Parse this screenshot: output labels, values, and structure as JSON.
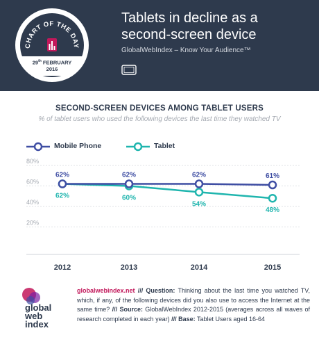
{
  "header": {
    "badge_top": "CHART OF THE DAY",
    "badge_date_day": "29",
    "badge_date_suffix": "th",
    "badge_date_month": "FEBRUARY",
    "badge_date_year": "2016",
    "title_line1": "Tablets in decline as a",
    "title_line2": "second-screen device",
    "subtitle": "GlobalWebIndex – Know Your Audience™",
    "icon": "tablet-icon"
  },
  "colors": {
    "header_bg": "#2e3a4d",
    "mobile": "#3f4ea3",
    "tablet": "#1fb5ae",
    "accent": "#c2185b"
  },
  "chart_data": {
    "type": "line",
    "title": "SECOND-SCREEN DEVICES AMONG TABLET USERS",
    "subtitle": "% of tablet users who used the following devices the last time they watched TV",
    "x": [
      "2012",
      "2013",
      "2014",
      "2015"
    ],
    "y_ticks": [
      "80%",
      "60%",
      "40%",
      "20%"
    ],
    "ylim": [
      0,
      80
    ],
    "grid": true,
    "legend_position": "top-left",
    "series": [
      {
        "name": "Mobile Phone",
        "values": [
          62,
          62,
          62,
          61
        ],
        "labels": [
          "62%",
          "62%",
          "62%",
          "61%"
        ],
        "color": "#3f4ea3"
      },
      {
        "name": "Tablet",
        "values": [
          62,
          60,
          54,
          48
        ],
        "labels": [
          "62%",
          "60%",
          "54%",
          "48%"
        ],
        "color": "#1fb5ae"
      }
    ]
  },
  "footer": {
    "url": "globalwebindex.net",
    "sep1": " /// ",
    "q_label": "Question:",
    "q_text": " Thinking about the last time you watched TV, which, if any, of the following devices did you also use to access the Internet at the same time?",
    "sep2": " /// ",
    "s_label": "Source:",
    "s_text": " GlobalWebIndex 2012-2015 (averages across all waves of research completed in each year)",
    "sep3": " /// ",
    "b_label": "Base:",
    "b_text": " Tablet Users aged 16-64",
    "logo_line1": "global",
    "logo_line2": "web",
    "logo_line3": "index"
  }
}
